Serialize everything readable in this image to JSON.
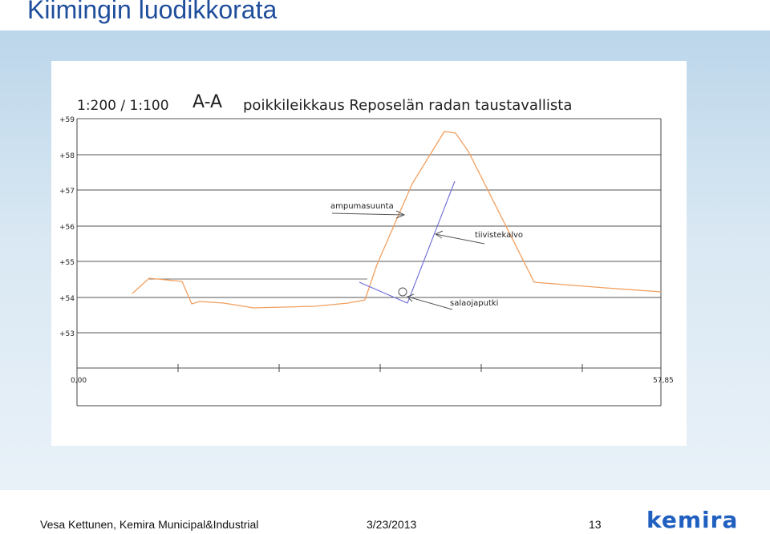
{
  "slide": {
    "title": "Kiimingin luodikkorata"
  },
  "drawing": {
    "scale_label": "1:200 / 1:100",
    "section_label": "A-A",
    "heading": "poikkileikkaus Reposelän radan taustavallista",
    "elevation_labels": [
      "+59",
      "+58",
      "+57",
      "+56",
      "+55",
      "+54",
      "+53"
    ],
    "distance_start": "0,00",
    "distance_end": "57,85",
    "annotations": {
      "firing_direction": "ampumasuunta",
      "sealing_membrane": "tiivistekalvo",
      "drain_pipe": "salaojaputki"
    },
    "colors": {
      "ground_profile": "#f2a060",
      "membrane": "#6a6ad8"
    }
  },
  "footer": {
    "author": "Vesa Kettunen, Kemira Municipal&Industrial",
    "date": "3/23/2013",
    "page": "13",
    "logo": "kemira"
  }
}
